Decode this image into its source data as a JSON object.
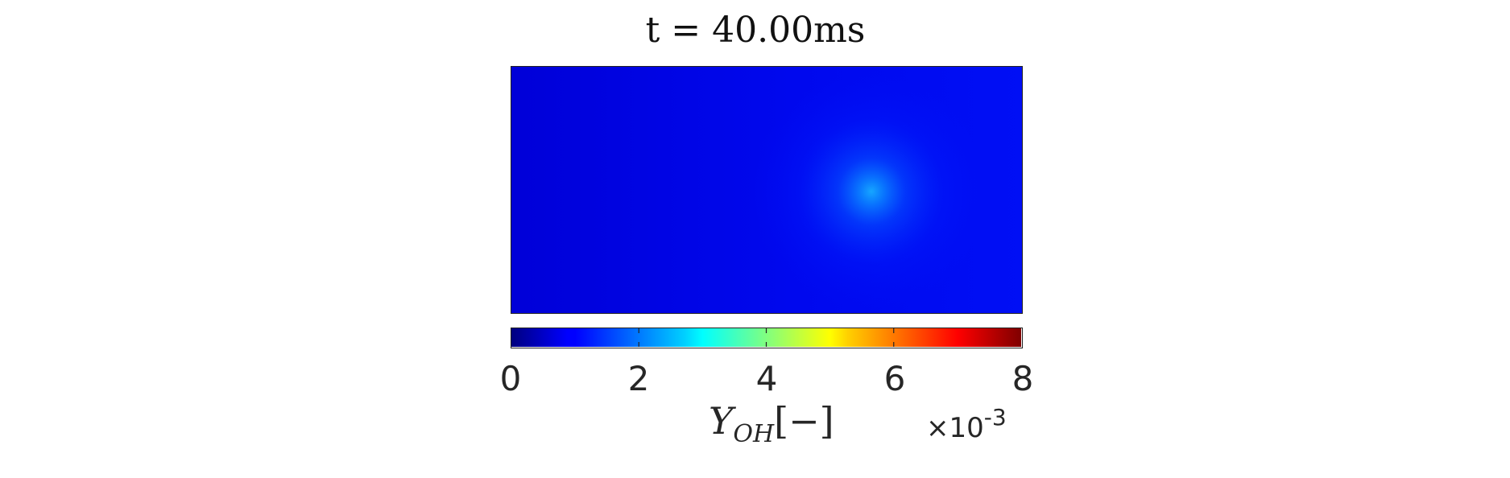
{
  "chart_data": {
    "type": "heatmap",
    "title": "t = 40.00ms",
    "colorbar": {
      "colormap": "jet",
      "min": 0,
      "max": 0.008,
      "ticks": [
        "0",
        "2",
        "4",
        "6",
        "8"
      ],
      "label_symbol": "Y",
      "label_subscript": "OH",
      "label_suffix": "[−]",
      "multiplier_base": "×10",
      "multiplier_exponent": "-3"
    },
    "field": {
      "background_value": 0.0012,
      "peak_value": 0.0026,
      "peak_location": "right-center"
    }
  }
}
